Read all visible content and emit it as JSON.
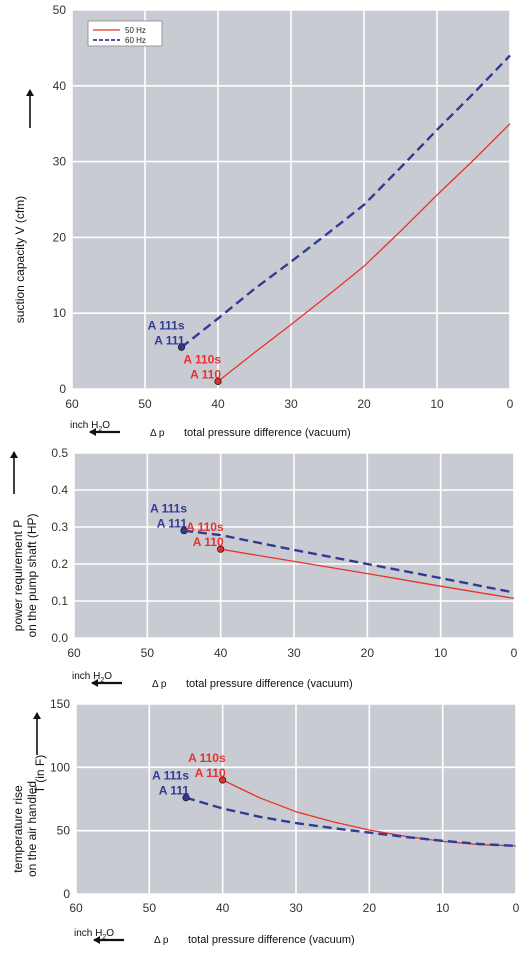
{
  "legend": {
    "entries": [
      {
        "label": "50 Hz",
        "color": "#e8312f",
        "dash": "solid"
      },
      {
        "label": "60 Hz",
        "color": "#303b96",
        "dash": "dashed"
      }
    ],
    "placement": "top-left"
  },
  "colors": {
    "plot_background": "#c8ccd2",
    "grid": "#ffffff",
    "series_50hz": "#e8312f",
    "series_60hz": "#303b96",
    "axis_text": "#333333"
  },
  "x_axis_footer": {
    "unit_arrow_label": "inch H",
    "unit_subscript": "2",
    "unit_suffix": "O",
    "delta_symbol": "Δ p",
    "caption": "total pressure difference (vacuum)"
  },
  "chart_data": [
    {
      "type": "line",
      "ylabel": "suction capacity V (cfm)",
      "xlim": [
        60,
        0
      ],
      "ylim": [
        0,
        50
      ],
      "xticks": [
        60,
        50,
        40,
        30,
        20,
        10,
        0
      ],
      "yticks": [
        0,
        10,
        20,
        30,
        40,
        50
      ],
      "ytick_labels": [
        "0",
        "10",
        "20",
        "30",
        "40",
        "50"
      ],
      "grid": true,
      "legend_placement": "top-left",
      "series": [
        {
          "name": "50 Hz",
          "color": "#e8312f",
          "dash": "solid",
          "x": [
            40,
            35,
            30,
            25,
            20,
            15,
            10,
            5,
            0
          ],
          "y": [
            1,
            4.8,
            8.5,
            12.3,
            16.2,
            20.8,
            25.6,
            30.2,
            35
          ]
        },
        {
          "name": "60 Hz",
          "color": "#303b96",
          "dash": "dashed",
          "x": [
            45,
            40,
            35,
            30,
            25,
            20,
            15,
            10,
            5,
            0
          ],
          "y": [
            5.5,
            9.3,
            13.2,
            16.8,
            20.5,
            24.3,
            29.2,
            34.2,
            39,
            44
          ]
        }
      ],
      "annotations": [
        {
          "text": "A 111s",
          "x": 45,
          "y": 5.5,
          "color": "#303b96",
          "line": 1
        },
        {
          "text": "A 111",
          "x": 45,
          "y": 5.5,
          "color": "#303b96",
          "line": 2
        },
        {
          "text": "A 110s",
          "x": 40,
          "y": 1,
          "color": "#e8312f",
          "line": 1
        },
        {
          "text": "A 110",
          "x": 40,
          "y": 1,
          "color": "#e8312f",
          "line": 2
        }
      ],
      "markers": [
        {
          "x": 45,
          "y": 5.5,
          "color": "#303b96"
        },
        {
          "x": 40,
          "y": 1,
          "color": "#e8312f"
        }
      ]
    },
    {
      "type": "line",
      "ylabel_lines": [
        "power requirement P",
        "on the pump shaft (HP)"
      ],
      "xlim": [
        60,
        0
      ],
      "ylim": [
        0,
        0.5
      ],
      "xticks": [
        60,
        50,
        40,
        30,
        20,
        10,
        0
      ],
      "yticks": [
        0,
        0.1,
        0.2,
        0.3,
        0.4,
        0.5
      ],
      "ytick_labels": [
        "0.0",
        "0.1",
        "0.2",
        "0.3",
        "0.4",
        "0.5"
      ],
      "grid": true,
      "series": [
        {
          "name": "50 Hz",
          "color": "#e8312f",
          "dash": "solid",
          "x": [
            40,
            30,
            20,
            10,
            0
          ],
          "y": [
            0.24,
            0.207,
            0.174,
            0.14,
            0.107
          ]
        },
        {
          "name": "60 Hz",
          "color": "#303b96",
          "dash": "dashed",
          "x": [
            45,
            40,
            30,
            20,
            10,
            0
          ],
          "y": [
            0.29,
            0.278,
            0.238,
            0.2,
            0.162,
            0.123
          ]
        }
      ],
      "annotations": [
        {
          "text": "A 111s",
          "x": 45,
          "y": 0.29,
          "color": "#303b96",
          "line": 1
        },
        {
          "text": "A 111",
          "x": 45,
          "y": 0.29,
          "color": "#303b96",
          "line": 2
        },
        {
          "text": "A 110s",
          "x": 40,
          "y": 0.24,
          "color": "#e8312f",
          "line": 1
        },
        {
          "text": "A 110",
          "x": 40,
          "y": 0.24,
          "color": "#e8312f",
          "line": 2
        }
      ],
      "markers": [
        {
          "x": 45,
          "y": 0.29,
          "color": "#303b96"
        },
        {
          "x": 40,
          "y": 0.24,
          "color": "#e8312f"
        }
      ]
    },
    {
      "type": "line",
      "ylabel_lines": [
        "temperature rise",
        "on the air handled"
      ],
      "ylabel_extra": "T   (in F)",
      "xlim": [
        60,
        0
      ],
      "ylim": [
        0,
        150
      ],
      "xticks": [
        60,
        50,
        40,
        30,
        20,
        10,
        0
      ],
      "yticks": [
        0,
        50,
        100,
        150
      ],
      "ytick_labels": [
        "0",
        "50",
        "100",
        "150"
      ],
      "grid": true,
      "series": [
        {
          "name": "50 Hz",
          "color": "#e8312f",
          "dash": "solid",
          "x": [
            40,
            35,
            30,
            25,
            20,
            15,
            10,
            5,
            0
          ],
          "y": [
            90,
            76,
            65,
            57,
            50.5,
            45.5,
            41.5,
            39,
            38
          ]
        },
        {
          "name": "60 Hz",
          "color": "#303b96",
          "dash": "dashed",
          "x": [
            45,
            40,
            35,
            30,
            25,
            20,
            15,
            10,
            5,
            0
          ],
          "y": [
            76,
            67.5,
            61,
            56,
            52,
            48.5,
            45,
            42,
            39.5,
            38
          ]
        }
      ],
      "annotations": [
        {
          "text": "A 111s",
          "x": 45,
          "y": 76,
          "color": "#303b96",
          "line": 1
        },
        {
          "text": "A 111",
          "x": 45,
          "y": 76,
          "color": "#303b96",
          "line": 2
        },
        {
          "text": "A 110s",
          "x": 40,
          "y": 90,
          "color": "#e8312f",
          "line": 1
        },
        {
          "text": "A 110",
          "x": 40,
          "y": 90,
          "color": "#e8312f",
          "line": 2
        }
      ],
      "markers": [
        {
          "x": 45,
          "y": 76,
          "color": "#303b96"
        },
        {
          "x": 40,
          "y": 90,
          "color": "#e8312f"
        }
      ]
    }
  ]
}
